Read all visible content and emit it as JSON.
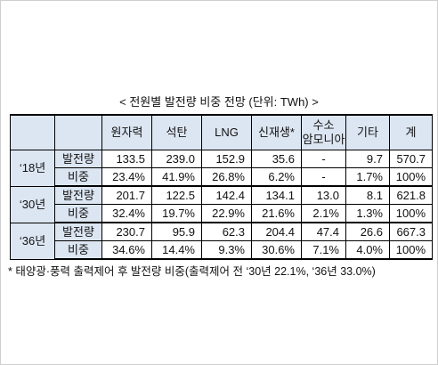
{
  "caption": "< 전원별 발전량 비중 전망 (단위: TWh) >",
  "headers": [
    "원자력",
    "석탄",
    "LNG",
    "신재생*",
    "수소\n암모니아",
    "기타",
    "계"
  ],
  "header_hydrogen_line1": "수소",
  "header_hydrogen_line2": "암모니아",
  "rows": [
    {
      "year": "‘18년",
      "generation_label": "발전량",
      "share_label": "비중",
      "generation": [
        "133.5",
        "239.0",
        "152.9",
        "35.6",
        "-",
        "9.7",
        "570.7"
      ],
      "share": [
        "23.4%",
        "41.9%",
        "26.8%",
        "6.2%",
        "-",
        "1.7%",
        "100%"
      ]
    },
    {
      "year": "‘30년",
      "generation_label": "발전량",
      "share_label": "비중",
      "generation": [
        "201.7",
        "122.5",
        "142.4",
        "134.1",
        "13.0",
        "8.1",
        "621.8"
      ],
      "share": [
        "32.4%",
        "19.7%",
        "22.9%",
        "21.6%",
        "2.1%",
        "1.3%",
        "100%"
      ]
    },
    {
      "year": "‘36년",
      "generation_label": "발전량",
      "share_label": "비중",
      "generation": [
        "230.7",
        "95.9",
        "62.3",
        "204.4",
        "47.4",
        "26.6",
        "667.3"
      ],
      "share": [
        "34.6%",
        "14.4%",
        "9.3%",
        "30.6%",
        "7.1%",
        "4.0%",
        "100%"
      ]
    }
  ],
  "footnote": "* 태양광·풍력 출력제어 후 발전량 비중(출력제어 전 ‘30년 22.1%, ‘36년 33.0%)",
  "colors": {
    "header_bg": "#dce6f2",
    "border": "#000000"
  }
}
